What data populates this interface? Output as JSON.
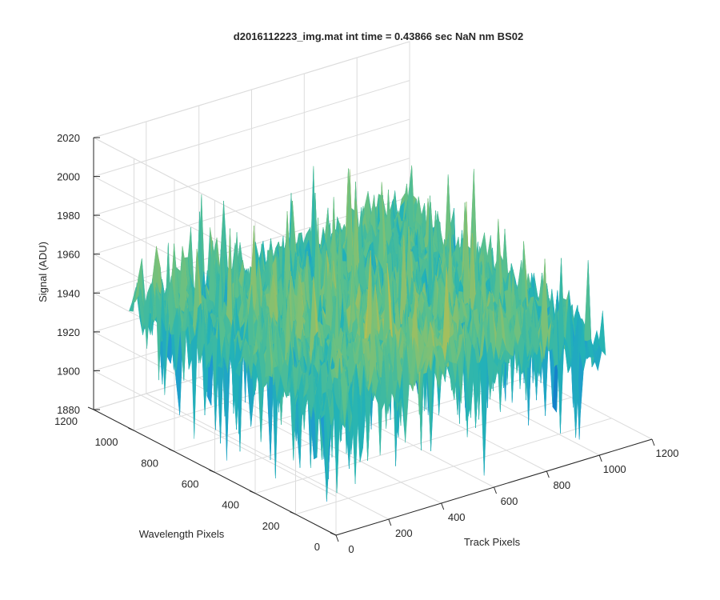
{
  "chart_data": {
    "type": "surface",
    "title": "d2016112223_img.mat int time = 0.43866 sec  NaN nm BS02",
    "xlabel": "Track Pixels",
    "ylabel": "Wavelength Pixels",
    "zlabel": "Signal (ADU)",
    "xlim": [
      0,
      1200
    ],
    "ylim": [
      0,
      1200
    ],
    "zlim": [
      1880,
      2020
    ],
    "x_ticks": [
      "0",
      "200",
      "400",
      "600",
      "800",
      "1000",
      "1200"
    ],
    "y_ticks": [
      "0",
      "200",
      "400",
      "600",
      "800",
      "1000",
      "1200"
    ],
    "z_ticks": [
      "1880",
      "1900",
      "1920",
      "1940",
      "1960",
      "1980",
      "2000",
      "2020"
    ],
    "x_data_range": [
      0,
      1024
    ],
    "y_data_range": [
      0,
      1024
    ],
    "signal_mean": 1945,
    "signal_noise_range": [
      1885,
      2000
    ],
    "colormap": [
      "#0d6cc4",
      "#1e9ad0",
      "#23b3b6",
      "#5cc08b",
      "#b5bf52",
      "#e8c04a"
    ],
    "grid": true
  }
}
